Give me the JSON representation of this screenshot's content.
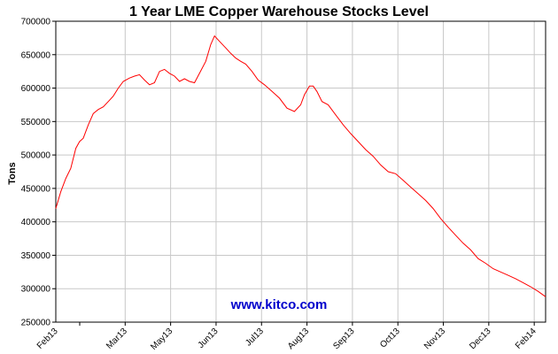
{
  "chart_data": {
    "type": "line",
    "title": "1 Year LME Copper Warehouse Stocks Level",
    "ylabel": "Tons",
    "xlabel": "",
    "ylim": [
      250000,
      700000
    ],
    "ytick_step": 50000,
    "grid": true,
    "legend": "none",
    "watermark": "www.kitco.com",
    "line_color": "#ff0000",
    "x_ticks": [
      "Feb13",
      "Mar13",
      "May13",
      "Jun13",
      "Jul13",
      "Aug13",
      "Sep13",
      "Oct13",
      "Nov13",
      "Dec13",
      "Feb14"
    ],
    "y_ticks": [
      "250000",
      "300000",
      "350000",
      "400000",
      "450000",
      "500000",
      "550000",
      "600000",
      "650000",
      "700000"
    ],
    "series": [
      {
        "x": [
          "2013-02-01",
          "2013-02-05",
          "2013-02-09",
          "2013-02-13",
          "2013-02-17",
          "2013-02-20",
          "2013-02-23",
          "2013-02-27",
          "2013-03-03",
          "2013-03-07",
          "2013-03-11",
          "2013-03-15",
          "2013-03-19",
          "2013-03-23",
          "2013-03-27",
          "2013-04-01",
          "2013-04-05",
          "2013-04-09",
          "2013-04-13",
          "2013-04-17",
          "2013-04-21",
          "2013-04-25",
          "2013-04-29",
          "2013-05-03",
          "2013-05-07",
          "2013-05-11",
          "2013-05-15",
          "2013-05-19",
          "2013-05-23",
          "2013-05-27",
          "2013-06-01",
          "2013-06-05",
          "2013-06-08",
          "2013-06-12",
          "2013-06-17",
          "2013-06-21",
          "2013-06-25",
          "2013-06-29",
          "2013-07-03",
          "2013-07-08",
          "2013-07-13",
          "2013-07-18",
          "2013-07-24",
          "2013-07-30",
          "2013-08-05",
          "2013-08-11",
          "2013-08-16",
          "2013-08-19",
          "2013-08-23",
          "2013-08-26",
          "2013-08-29",
          "2013-09-02",
          "2013-09-07",
          "2013-09-13",
          "2013-09-19",
          "2013-09-25",
          "2013-10-01",
          "2013-10-07",
          "2013-10-13",
          "2013-10-19",
          "2013-10-25",
          "2013-10-31",
          "2013-11-06",
          "2013-11-12",
          "2013-11-18",
          "2013-11-24",
          "2013-11-30",
          "2013-12-06",
          "2013-12-12",
          "2013-12-18",
          "2013-12-24",
          "2013-12-30",
          "2014-01-05",
          "2014-01-11",
          "2014-01-17",
          "2014-01-23",
          "2014-01-29",
          "2014-02-04",
          "2014-02-10",
          "2014-02-16",
          "2014-02-22",
          "2014-02-28"
        ],
        "values": [
          420000,
          445000,
          465000,
          480000,
          510000,
          520000,
          525000,
          545000,
          562000,
          568000,
          572000,
          580000,
          588000,
          600000,
          610000,
          615000,
          618000,
          620000,
          612000,
          605000,
          608000,
          625000,
          628000,
          622000,
          618000,
          610000,
          614000,
          610000,
          608000,
          622000,
          640000,
          665000,
          678000,
          670000,
          660000,
          652000,
          645000,
          640000,
          636000,
          625000,
          612000,
          605000,
          595000,
          585000,
          570000,
          565000,
          575000,
          590000,
          603000,
          603000,
          595000,
          580000,
          575000,
          560000,
          545000,
          532000,
          520000,
          508000,
          498000,
          485000,
          475000,
          472000,
          462000,
          452000,
          442000,
          432000,
          420000,
          405000,
          392000,
          380000,
          368000,
          358000,
          345000,
          338000,
          330000,
          325000,
          320000,
          315000,
          309000,
          303000,
          296000,
          288000
        ]
      }
    ]
  }
}
